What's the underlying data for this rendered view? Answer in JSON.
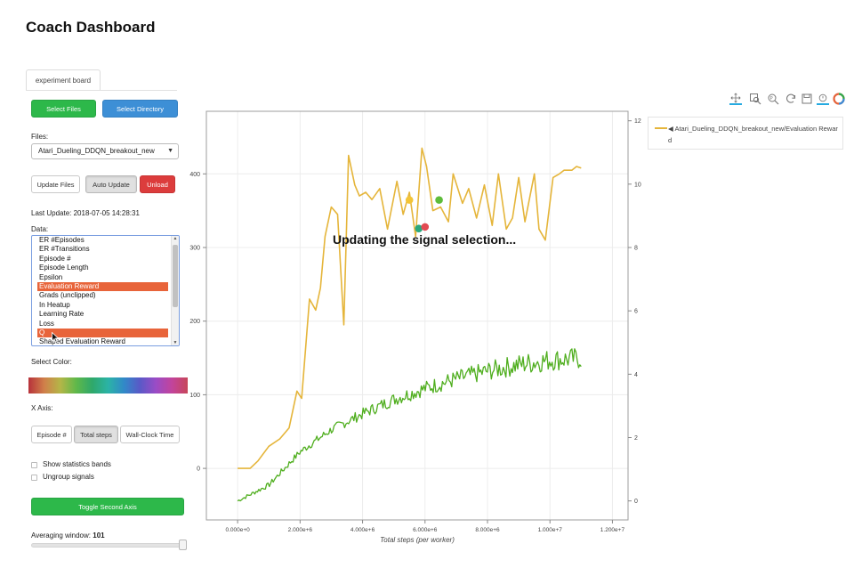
{
  "app": {
    "title": "Coach Dashboard"
  },
  "tabs": [
    {
      "label": "experiment board"
    }
  ],
  "file_buttons": {
    "select_files": "Select Files",
    "select_directory": "Select Directory"
  },
  "files": {
    "label": "Files:",
    "selected": "Atari_Dueling_DDQN_breakout_new"
  },
  "actions": {
    "update_files": "Update Files",
    "auto_update": "Auto Update",
    "unload": "Unload"
  },
  "last_update": {
    "label": "Last Update:",
    "value": "2018-07-05 14:28:31"
  },
  "data_list": {
    "label": "Data:",
    "items": [
      {
        "label": "ER #Episodes",
        "selected": false
      },
      {
        "label": "ER #Transitions",
        "selected": false
      },
      {
        "label": "Episode #",
        "selected": false
      },
      {
        "label": "Episode Length",
        "selected": false
      },
      {
        "label": "Epsilon",
        "selected": false
      },
      {
        "label": "Evaluation Reward",
        "selected": true
      },
      {
        "label": "Grads (unclipped)",
        "selected": false
      },
      {
        "label": "In Heatup",
        "selected": false
      },
      {
        "label": "Learning Rate",
        "selected": false
      },
      {
        "label": "Loss",
        "selected": false
      },
      {
        "label": "Q",
        "selected": true
      },
      {
        "label": "Shaped Evaluation Reward",
        "selected": false
      }
    ]
  },
  "select_color": {
    "label": "Select Color:"
  },
  "x_axis": {
    "label": "X Axis:",
    "options": [
      "Episode #",
      "Total steps",
      "Wall-Clock Time"
    ],
    "selected": "Total steps"
  },
  "checkboxes": {
    "statistics_bands": "Show statistics bands",
    "ungroup_signals": "Ungroup signals"
  },
  "toggle_second_axis": "Toggle Second Axis",
  "averaging_window": {
    "label": "Averaging window:",
    "value": "101",
    "fraction": 0.98
  },
  "toolbar": {
    "icons": [
      "pan-icon",
      "box-zoom-icon",
      "wheel-zoom-icon",
      "reset-icon",
      "save-icon",
      "hover-icon",
      "logo-icon"
    ]
  },
  "status_message": "Updating the signal selection...",
  "legend": {
    "entries": [
      {
        "label": "Atari_Dueling_DDQN_breakout_new/Evaluation Reward",
        "color": "#e5b53a"
      }
    ]
  },
  "chart_data": {
    "type": "line",
    "xlabel": "Total steps (per worker)",
    "xlim": [
      -1000000,
      12500000
    ],
    "x_ticks": [
      0,
      2000000,
      4000000,
      6000000,
      8000000,
      10000000,
      12000000
    ],
    "x_tick_labels": [
      "0.000e+0",
      "2.000e+6",
      "4.000e+6",
      "6.000e+6",
      "8.000e+6",
      "1.000e+7",
      "1.200e+7"
    ],
    "y_left": {
      "lim": [
        -70,
        485
      ],
      "ticks": [
        0,
        100,
        200,
        300,
        400
      ],
      "tick_labels": [
        "0",
        "100",
        "200",
        "300",
        "400"
      ]
    },
    "y_right": {
      "lim": [
        -0.6,
        12.3
      ],
      "ticks": [
        0,
        2,
        4,
        6,
        8,
        10,
        12
      ],
      "tick_labels": [
        "0",
        "2",
        "4",
        "6",
        "8",
        "10",
        "12"
      ]
    },
    "grid": true,
    "legend_position": "top-right outside",
    "series": [
      {
        "name": "Atari_Dueling_DDQN_breakout_new/Evaluation Reward",
        "axis": "left",
        "color": "#e5b53a",
        "x": [
          0,
          400000,
          650000,
          1000000,
          1350000,
          1650000,
          1900000,
          2050000,
          2300000,
          2500000,
          2650000,
          2800000,
          3000000,
          3200000,
          3400000,
          3550000,
          3750000,
          3900000,
          4100000,
          4300000,
          4550000,
          4800000,
          5100000,
          5300000,
          5500000,
          5700000,
          5900000,
          6050000,
          6250000,
          6500000,
          6750000,
          6900000,
          7200000,
          7400000,
          7650000,
          7900000,
          8150000,
          8350000,
          8600000,
          8800000,
          9000000,
          9200000,
          9500000,
          9650000,
          9850000,
          10100000,
          10300000,
          10450000,
          10700000,
          10850000,
          11000000
        ],
        "values": [
          0,
          0,
          10,
          30,
          40,
          55,
          105,
          95,
          230,
          215,
          245,
          315,
          355,
          345,
          195,
          425,
          385,
          370,
          375,
          365,
          380,
          325,
          390,
          345,
          375,
          315,
          435,
          410,
          350,
          355,
          335,
          400,
          360,
          380,
          340,
          385,
          330,
          400,
          325,
          340,
          395,
          335,
          400,
          325,
          310,
          395,
          400,
          405,
          405,
          410,
          408
        ]
      },
      {
        "name": "",
        "axis": "right",
        "color": "#4fae1e",
        "x": [
          0,
          1000000,
          2000000,
          3000000,
          4000000,
          5000000,
          6000000,
          7000000,
          8000000,
          9000000,
          10000000,
          11000000
        ],
        "values": [
          0,
          0.5,
          1.55,
          2.25,
          2.75,
          3.2,
          3.55,
          3.85,
          4.1,
          4.3,
          4.45,
          4.5
        ]
      }
    ],
    "markers": [
      {
        "x": 5500000,
        "y": 9.5,
        "color": "#f3c437"
      },
      {
        "x": 6450000,
        "y": 9.5,
        "color": "#5ebc3a"
      },
      {
        "x": 5800000,
        "y": 8.6,
        "color": "#2aa77c"
      },
      {
        "x": 6000000,
        "y": 8.65,
        "color": "#e24a52"
      }
    ]
  }
}
